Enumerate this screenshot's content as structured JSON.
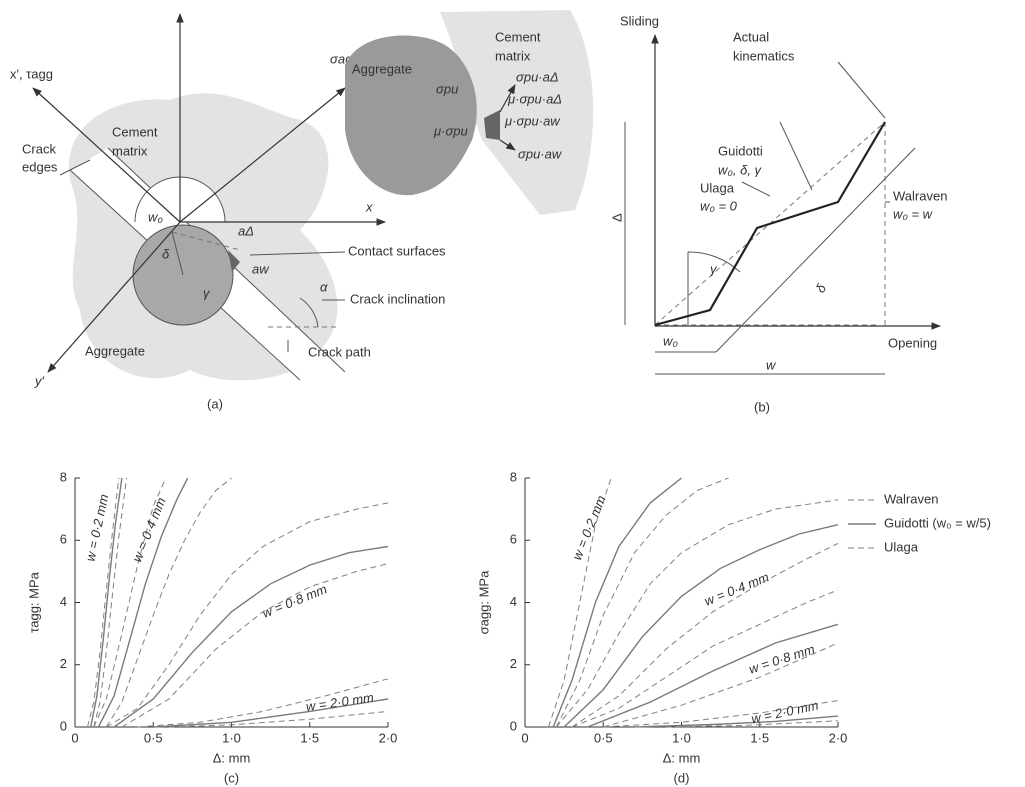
{
  "diagram_a": {
    "x_prime_axis": "x′, τagg",
    "sigma_axis": "σagg",
    "crack_edges": [
      "Crack",
      "edges"
    ],
    "cement_matrix": [
      "Cement",
      "matrix"
    ],
    "w0": "w₀",
    "x_axis": "x",
    "delta": "δ",
    "gamma": "γ",
    "a_delta": "aΔ",
    "a_w": "aw",
    "contact_surfaces": "Contact surfaces",
    "alpha": "α",
    "crack_inclination": "Crack inclination",
    "aggregate": "Aggregate",
    "crack_path": "Crack path",
    "y_prime_axis": "y′",
    "caption": "(a)",
    "inset": {
      "aggregate": "Aggregate",
      "cement_matrix": [
        "Cement",
        "matrix"
      ],
      "sigma_pu": "σpu",
      "mu_sigma_pu": "μ·σpu",
      "force_1": "σpu·aΔ",
      "force_2": "μ·σpu·aΔ",
      "force_3": "μ·σpu·aw",
      "force_4": "σpu·aw"
    }
  },
  "diagram_b": {
    "y_axis": "Sliding",
    "x_axis": "Opening",
    "actual": [
      "Actual",
      "kinematics"
    ],
    "guidotti": [
      "Guidotti",
      "w₀, δ, γ"
    ],
    "ulaga": [
      "Ulaga",
      "w₀ = 0"
    ],
    "walraven": [
      "Walraven",
      "w₀ = w"
    ],
    "delta_cap": "Δ",
    "gamma": "γ",
    "delta": "δ",
    "w0": "w₀",
    "w": "w",
    "caption": "(b)"
  },
  "chart_data": [
    {
      "type": "line",
      "xlabel": "Δ: mm",
      "ylabel": "τagg: MPa",
      "caption": "(c)",
      "xlim": [
        0,
        2
      ],
      "ylim": [
        0,
        8
      ],
      "xticks": [
        0,
        {
          "value": 0.5,
          "label": "0·5"
        },
        {
          "value": 1,
          "label": "1·0"
        },
        {
          "value": 1.5,
          "label": "1·5"
        },
        {
          "value": 2,
          "label": "2·0"
        }
      ],
      "yticks": [
        0,
        2,
        4,
        6,
        8
      ],
      "series": [
        {
          "color": "#808080",
          "dash": true,
          "curves": [
            {
              "x": [
                0.08,
                0.12,
                0.16,
                0.2,
                0.24,
                0.28
              ],
              "values": [
                0,
                0.8,
                2.4,
                4.4,
                6.3,
                8
              ]
            },
            {
              "x": [
                0.12,
                0.2,
                0.3,
                0.4,
                0.5,
                0.58
              ],
              "values": [
                0,
                0.9,
                3,
                5.2,
                7.1,
                8
              ]
            },
            {
              "x": [
                0.2,
                0.4,
                0.6,
                0.8,
                1.0,
                1.2,
                1.5,
                1.8,
                2.0
              ],
              "values": [
                0,
                0.6,
                2,
                3.6,
                4.9,
                5.8,
                6.6,
                7.0,
                7.2
              ]
            },
            {
              "x": [
                0.4,
                0.8,
                1.2,
                1.6,
                2.0
              ],
              "values": [
                0,
                0.15,
                0.5,
                1.0,
                1.55
              ]
            }
          ]
        },
        {
          "color": "#7a7a7a",
          "dash": false,
          "curves": [
            {
              "label": "w = 0·2 mm",
              "x": [
                0.1,
                0.14,
                0.18,
                0.22,
                0.26,
                0.3
              ],
              "values": [
                0,
                1,
                2.8,
                4.8,
                6.6,
                8
              ]
            },
            {
              "label": "w = 0·4 mm",
              "x": [
                0.15,
                0.25,
                0.35,
                0.45,
                0.55,
                0.65,
                0.72
              ],
              "values": [
                0,
                1,
                2.8,
                4.6,
                6.1,
                7.3,
                8
              ]
            },
            {
              "label": "w = 0·8 mm",
              "x": [
                0.25,
                0.5,
                0.75,
                1.0,
                1.25,
                1.5,
                1.75,
                2.0
              ],
              "values": [
                0,
                0.9,
                2.4,
                3.7,
                4.6,
                5.2,
                5.6,
                5.8
              ]
            },
            {
              "label": "w = 2·0 mm",
              "x": [
                0.5,
                1.0,
                1.5,
                2.0
              ],
              "values": [
                0,
                0.15,
                0.5,
                0.9
              ]
            }
          ]
        },
        {
          "color": "#808080",
          "dash": true,
          "curves": [
            {
              "x": [
                0.12,
                0.16,
                0.2,
                0.24,
                0.28,
                0.33
              ],
              "values": [
                0,
                0.8,
                2.4,
                4.3,
                6.1,
                8
              ]
            },
            {
              "x": [
                0.2,
                0.3,
                0.4,
                0.5,
                0.6,
                0.7,
                0.8,
                0.9,
                1.0
              ],
              "values": [
                0,
                0.8,
                2.2,
                3.6,
                4.9,
                6,
                6.9,
                7.6,
                8
              ]
            },
            {
              "x": [
                0.3,
                0.6,
                0.9,
                1.2,
                1.5,
                1.8,
                2.0
              ],
              "values": [
                0,
                0.9,
                2.5,
                3.7,
                4.5,
                5.0,
                5.25
              ]
            },
            {
              "x": [
                0.6,
                1.0,
                1.5,
                2.0
              ],
              "values": [
                0,
                0.07,
                0.25,
                0.5
              ]
            }
          ]
        }
      ]
    },
    {
      "type": "line",
      "xlabel": "Δ: mm",
      "ylabel": "σagg: MPa",
      "caption": "(d)",
      "xlim": [
        0,
        2
      ],
      "ylim": [
        0,
        8
      ],
      "xticks": [
        0,
        {
          "value": 0.5,
          "label": "0·5"
        },
        {
          "value": 1,
          "label": "1·0"
        },
        {
          "value": 1.5,
          "label": "1·5"
        },
        {
          "value": 2,
          "label": "2·0"
        }
      ],
      "yticks": [
        0,
        2,
        4,
        6,
        8
      ],
      "legend": "right",
      "series": [
        {
          "name": "Walraven",
          "color": "#808080",
          "dash": true,
          "curves": [
            {
              "x": [
                0.15,
                0.25,
                0.35,
                0.45,
                0.55
              ],
              "values": [
                0,
                1.5,
                4,
                6.5,
                8
              ]
            },
            {
              "x": [
                0.2,
                0.4,
                0.6,
                0.8,
                1.0,
                1.3,
                1.6,
                2.0
              ],
              "values": [
                0,
                1.2,
                3,
                4.6,
                5.6,
                6.5,
                7.0,
                7.3
              ]
            },
            {
              "x": [
                0.3,
                0.6,
                0.9,
                1.2,
                1.5,
                1.8,
                2.0
              ],
              "values": [
                0,
                0.6,
                1.6,
                2.6,
                3.3,
                4,
                4.4
              ]
            },
            {
              "x": [
                0.5,
                1.0,
                1.5,
                2.0
              ],
              "values": [
                0,
                0.15,
                0.45,
                0.85
              ]
            }
          ]
        },
        {
          "name": "Guidotti (w₀ = w/5)",
          "color": "#7a7a7a",
          "dash": false,
          "curves": [
            {
              "label": "w = 0·2 mm",
              "x": [
                0.18,
                0.3,
                0.45,
                0.6,
                0.8,
                1.0
              ],
              "values": [
                0,
                1.5,
                4,
                5.8,
                7.2,
                8
              ]
            },
            {
              "label": "w = 0·4 mm",
              "x": [
                0.25,
                0.5,
                0.75,
                1.0,
                1.25,
                1.5,
                1.75,
                2.0
              ],
              "values": [
                0,
                1.2,
                2.9,
                4.2,
                5.1,
                5.7,
                6.2,
                6.5
              ]
            },
            {
              "label": "w = 0·8 mm",
              "x": [
                0.4,
                0.8,
                1.2,
                1.6,
                2.0
              ],
              "values": [
                0,
                0.8,
                1.8,
                2.7,
                3.3
              ]
            },
            {
              "label": "w = 2·0 mm",
              "x": [
                0.7,
                1.2,
                1.6,
                2.0
              ],
              "values": [
                0,
                0.08,
                0.18,
                0.35
              ]
            }
          ]
        },
        {
          "name": "Ulaga",
          "color": "#808080",
          "dash": true,
          "curves": [
            {
              "x": [
                0.2,
                0.35,
                0.5,
                0.7,
                0.9,
                1.1,
                1.3
              ],
              "values": [
                0,
                1.5,
                3.6,
                5.6,
                6.8,
                7.6,
                8
              ]
            },
            {
              "x": [
                0.3,
                0.6,
                0.9,
                1.2,
                1.5,
                1.8,
                2.0
              ],
              "values": [
                0,
                1,
                2.5,
                3.7,
                4.6,
                5.4,
                5.9
              ]
            },
            {
              "x": [
                0.5,
                1.0,
                1.5,
                2.0
              ],
              "values": [
                0,
                0.7,
                1.6,
                2.7
              ]
            },
            {
              "x": [
                0.9,
                1.4,
                2.0
              ],
              "values": [
                0,
                0.05,
                0.2
              ]
            }
          ]
        }
      ]
    }
  ]
}
